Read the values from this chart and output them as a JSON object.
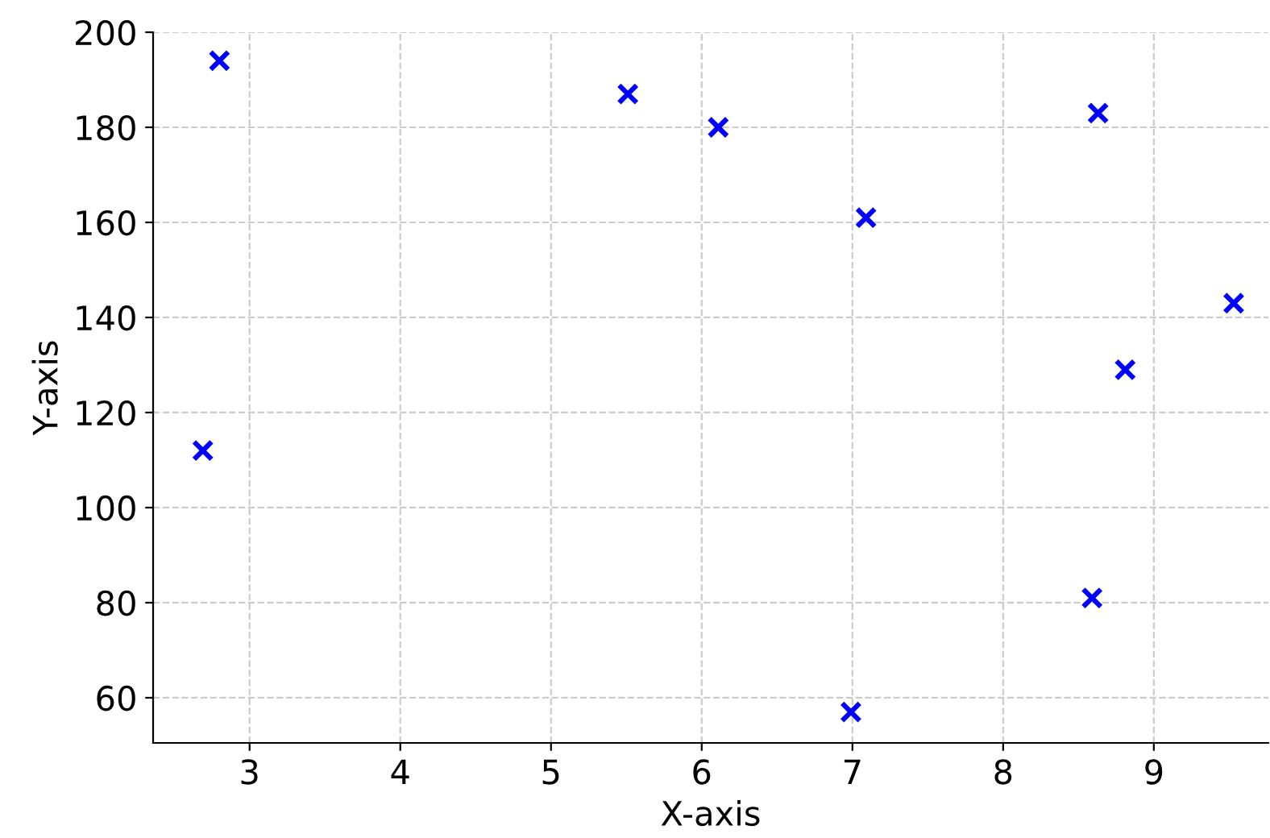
{
  "chart_data": {
    "type": "scatter",
    "xlabel": "X-axis",
    "ylabel": "Y-axis",
    "x": [
      2.69,
      2.8,
      5.51,
      6.11,
      7.09,
      6.99,
      8.63,
      8.59,
      8.81,
      9.53
    ],
    "series": [
      {
        "color": "#0000ff",
        "values": [
          112,
          194,
          187,
          180,
          161,
          57,
          183,
          81,
          129,
          143
        ]
      }
    ],
    "marker": "cross",
    "grid": true,
    "xlim": [
      2.36,
      9.76
    ],
    "ylim": [
      50.5,
      200
    ],
    "xticks": [
      3,
      4,
      5,
      6,
      7,
      8,
      9
    ],
    "yticks": [
      60,
      80,
      100,
      120,
      140,
      160,
      180,
      200
    ]
  }
}
